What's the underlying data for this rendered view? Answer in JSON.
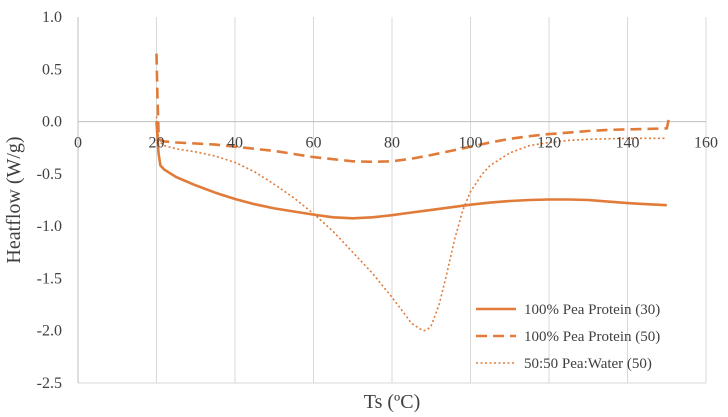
{
  "chart_data": {
    "type": "line",
    "title": "",
    "xlabel": "Ts (ºC)",
    "ylabel": "Heatflow (W/g)",
    "xlim": [
      0,
      160
    ],
    "ylim": [
      -2.5,
      1.0
    ],
    "x_ticks": [
      "0",
      "20",
      "40",
      "60",
      "80",
      "100",
      "120",
      "140",
      "160"
    ],
    "y_ticks": [
      "1.0",
      "0.5",
      "0.0",
      "-0.5",
      "-1.0",
      "-1.5",
      "-2.0",
      "-2.5"
    ],
    "grid": "vertical",
    "legend_position": "bottom-right",
    "series": [
      {
        "name": "100% Pea Protein (30)",
        "color": "#e07b39",
        "style": "solid",
        "x": [
          20,
          20.5,
          21,
          22,
          25,
          30,
          35,
          40,
          45,
          50,
          55,
          60,
          65,
          70,
          75,
          80,
          85,
          90,
          95,
          100,
          105,
          110,
          115,
          120,
          125,
          130,
          135,
          140,
          145,
          150
        ],
        "y": [
          0.0,
          -0.3,
          -0.42,
          -0.46,
          -0.53,
          -0.61,
          -0.68,
          -0.74,
          -0.79,
          -0.83,
          -0.86,
          -0.89,
          -0.915,
          -0.925,
          -0.915,
          -0.895,
          -0.87,
          -0.845,
          -0.82,
          -0.795,
          -0.775,
          -0.76,
          -0.75,
          -0.745,
          -0.745,
          -0.75,
          -0.765,
          -0.78,
          -0.79,
          -0.8
        ]
      },
      {
        "name": "100% Pea Protein (50)",
        "color": "#e07b39",
        "style": "dashed",
        "x": [
          20,
          20.2,
          20.5,
          21,
          22,
          25,
          30,
          35,
          40,
          45,
          50,
          55,
          60,
          65,
          70,
          75,
          80,
          85,
          90,
          95,
          100,
          105,
          110,
          115,
          120,
          125,
          130,
          135,
          140,
          145,
          150,
          150.5
        ],
        "y": [
          0.65,
          0.3,
          -0.1,
          -0.18,
          -0.19,
          -0.2,
          -0.21,
          -0.22,
          -0.24,
          -0.26,
          -0.28,
          -0.31,
          -0.34,
          -0.36,
          -0.38,
          -0.385,
          -0.38,
          -0.355,
          -0.32,
          -0.28,
          -0.24,
          -0.2,
          -0.165,
          -0.14,
          -0.12,
          -0.105,
          -0.09,
          -0.08,
          -0.075,
          -0.07,
          -0.065,
          0.02
        ]
      },
      {
        "name": "50:50 Pea:Water (50)",
        "color": "#e07b39",
        "style": "dotted",
        "x": [
          20,
          20.5,
          21,
          22,
          25,
          30,
          35,
          40,
          45,
          50,
          55,
          60,
          65,
          70,
          75,
          80,
          83,
          85,
          87,
          88,
          89,
          90,
          92,
          94,
          96,
          98,
          100,
          103,
          105,
          110,
          115,
          120,
          125,
          130,
          135,
          140,
          145,
          150
        ],
        "y": [
          0.05,
          -0.15,
          -0.2,
          -0.23,
          -0.26,
          -0.29,
          -0.33,
          -0.39,
          -0.48,
          -0.6,
          -0.73,
          -0.88,
          -1.05,
          -1.25,
          -1.45,
          -1.68,
          -1.83,
          -1.93,
          -1.98,
          -2.0,
          -1.99,
          -1.95,
          -1.75,
          -1.45,
          -1.12,
          -0.85,
          -0.67,
          -0.5,
          -0.42,
          -0.3,
          -0.23,
          -0.2,
          -0.18,
          -0.17,
          -0.165,
          -0.16,
          -0.16,
          -0.16
        ]
      }
    ]
  }
}
